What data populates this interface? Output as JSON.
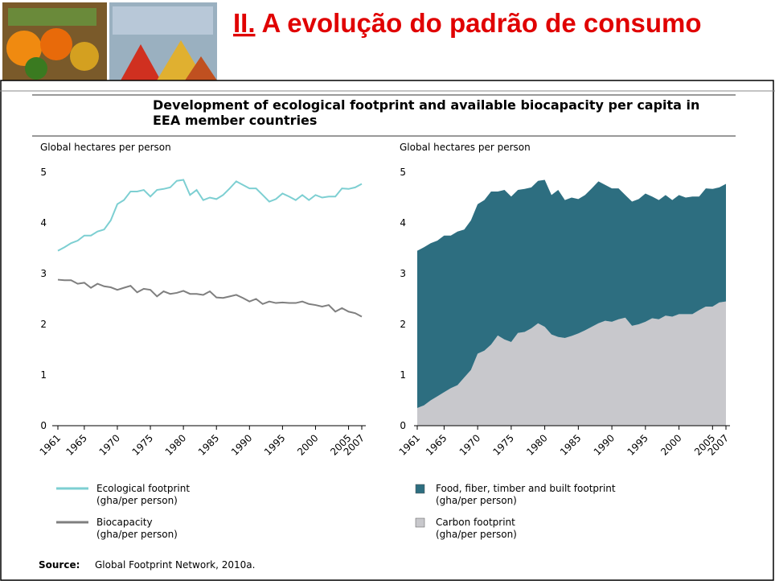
{
  "header": {
    "title_number": "II.",
    "title": "A evolução do padrão de consumo"
  },
  "figure": {
    "title": "Development of ecological footprint and available biocapacity per capita in EEA member countries"
  },
  "chart_data": [
    {
      "type": "line",
      "ylabel": "Global hectares per person",
      "x": [
        1961,
        1962,
        1963,
        1964,
        1965,
        1966,
        1967,
        1968,
        1969,
        1970,
        1971,
        1972,
        1973,
        1974,
        1975,
        1976,
        1977,
        1978,
        1979,
        1980,
        1981,
        1982,
        1983,
        1984,
        1985,
        1986,
        1987,
        1988,
        1989,
        1990,
        1991,
        1992,
        1993,
        1994,
        1995,
        1996,
        1997,
        1998,
        1999,
        2000,
        2001,
        2002,
        2003,
        2004,
        2005,
        2006,
        2007
      ],
      "xlim": [
        1961,
        2007
      ],
      "xticks": [
        1961,
        1965,
        1970,
        1975,
        1980,
        1985,
        1990,
        1995,
        2000,
        2005,
        2007
      ],
      "ylim": [
        0,
        5
      ],
      "yticks": [
        0,
        1,
        2,
        3,
        4,
        5
      ],
      "series": [
        {
          "name": "Ecological footprint\n(gha/per person)",
          "color": "#7dcfd2",
          "values": [
            3.45,
            3.52,
            3.6,
            3.65,
            3.75,
            3.75,
            3.83,
            3.87,
            4.05,
            4.37,
            4.45,
            4.62,
            4.62,
            4.65,
            4.52,
            4.65,
            4.67,
            4.7,
            4.83,
            4.85,
            4.55,
            4.65,
            4.45,
            4.5,
            4.47,
            4.55,
            4.68,
            4.82,
            4.75,
            4.68,
            4.68,
            4.55,
            4.42,
            4.47,
            4.58,
            4.52,
            4.45,
            4.55,
            4.45,
            4.55,
            4.5,
            4.52,
            4.52,
            4.68,
            4.67,
            4.7,
            4.77
          ]
        },
        {
          "name": "Biocapacity\n(gha/per person)",
          "color": "#7f7f7f",
          "values": [
            2.88,
            2.87,
            2.87,
            2.8,
            2.82,
            2.72,
            2.8,
            2.75,
            2.73,
            2.68,
            2.72,
            2.76,
            2.63,
            2.7,
            2.68,
            2.55,
            2.65,
            2.6,
            2.62,
            2.66,
            2.6,
            2.6,
            2.58,
            2.65,
            2.53,
            2.52,
            2.55,
            2.58,
            2.52,
            2.45,
            2.5,
            2.4,
            2.45,
            2.42,
            2.43,
            2.42,
            2.42,
            2.45,
            2.4,
            2.38,
            2.35,
            2.38,
            2.25,
            2.32,
            2.25,
            2.22,
            2.15
          ]
        }
      ]
    },
    {
      "type": "stacked_area",
      "ylabel": "Global hectares per person",
      "x": [
        1961,
        1962,
        1963,
        1964,
        1965,
        1966,
        1967,
        1968,
        1969,
        1970,
        1971,
        1972,
        1973,
        1974,
        1975,
        1976,
        1977,
        1978,
        1979,
        1980,
        1981,
        1982,
        1983,
        1984,
        1985,
        1986,
        1987,
        1988,
        1989,
        1990,
        1991,
        1992,
        1993,
        1994,
        1995,
        1996,
        1997,
        1998,
        1999,
        2000,
        2001,
        2002,
        2003,
        2004,
        2005,
        2006,
        2007
      ],
      "xlim": [
        1961,
        2007
      ],
      "xticks": [
        1961,
        1965,
        1970,
        1975,
        1980,
        1985,
        1990,
        1995,
        2000,
        2005,
        2007
      ],
      "ylim": [
        0,
        5
      ],
      "yticks": [
        0,
        1,
        2,
        3,
        4,
        5
      ],
      "series": [
        {
          "name": "Food, fiber, timber and built footprint\n(gha/per person)",
          "color": "#2d6e80",
          "values": [
            3.1,
            3.12,
            3.1,
            3.07,
            3.09,
            3.01,
            3.03,
            2.92,
            2.95,
            2.95,
            2.97,
            3.02,
            2.84,
            2.95,
            2.87,
            2.82,
            2.82,
            2.78,
            2.81,
            2.9,
            2.75,
            2.9,
            2.72,
            2.73,
            2.65,
            2.67,
            2.73,
            2.8,
            2.68,
            2.63,
            2.58,
            2.42,
            2.45,
            2.47,
            2.53,
            2.4,
            2.35,
            2.38,
            2.3,
            2.35,
            2.3,
            2.32,
            2.24,
            2.33,
            2.32,
            2.27,
            2.32
          ]
        },
        {
          "name": "Carbon footprint\n(gha/per person)",
          "color": "#c8c8cc",
          "values": [
            0.35,
            0.4,
            0.5,
            0.58,
            0.66,
            0.74,
            0.8,
            0.95,
            1.1,
            1.42,
            1.48,
            1.6,
            1.78,
            1.7,
            1.65,
            1.83,
            1.85,
            1.92,
            2.02,
            1.95,
            1.8,
            1.75,
            1.73,
            1.77,
            1.82,
            1.88,
            1.95,
            2.02,
            2.07,
            2.05,
            2.1,
            2.13,
            1.97,
            2.0,
            2.05,
            2.12,
            2.1,
            2.17,
            2.15,
            2.2,
            2.2,
            2.2,
            2.28,
            2.35,
            2.35,
            2.43,
            2.45
          ]
        }
      ]
    }
  ],
  "source": {
    "label": "Source:",
    "text": "Global Footprint Network, 2010a."
  }
}
